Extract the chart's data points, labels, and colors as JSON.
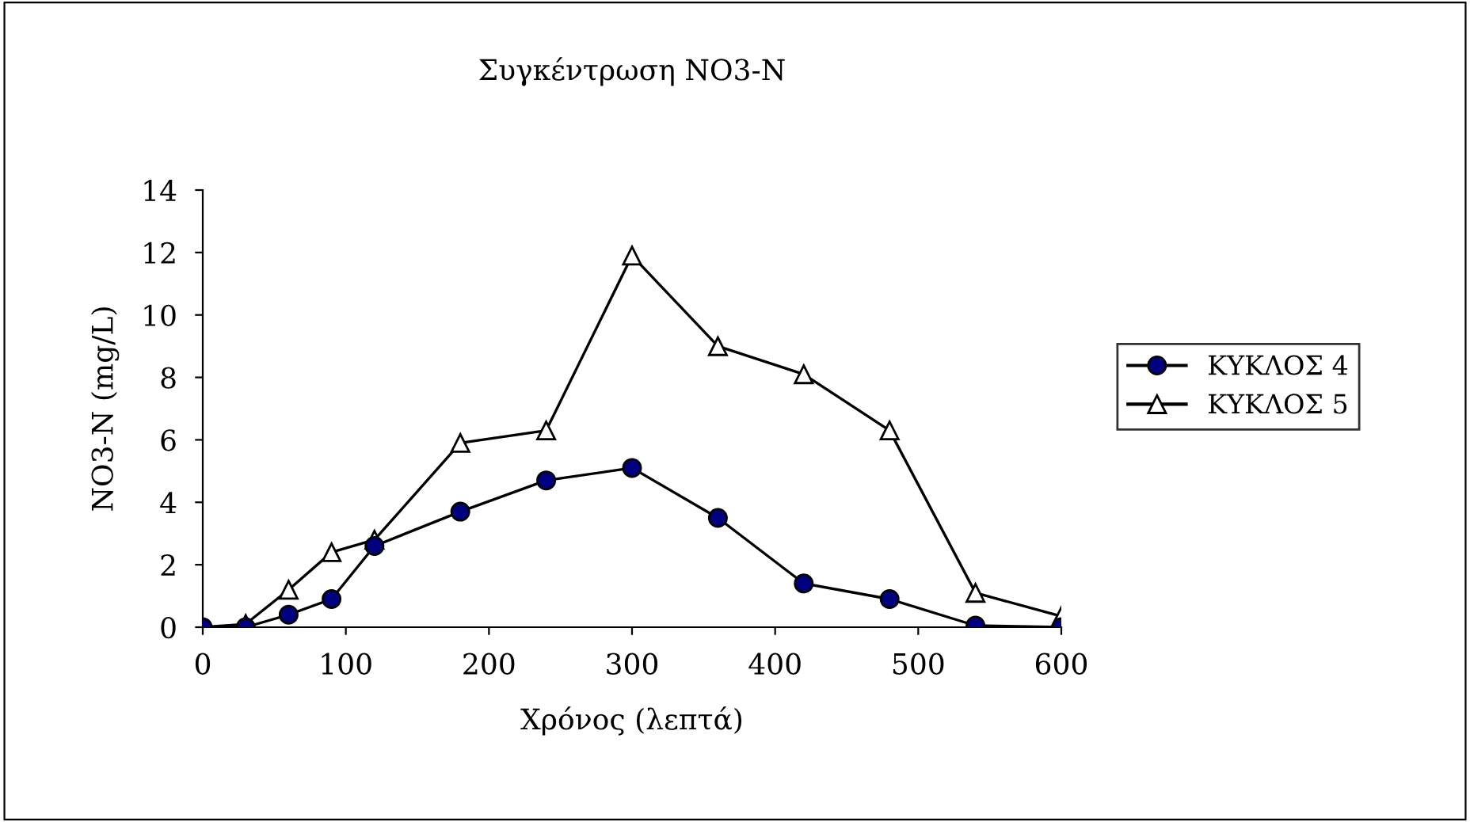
{
  "chart_data": {
    "type": "line",
    "title": "Συγκέντρωση NO3-N",
    "xlabel": "Χρόνος (λεπτά)",
    "ylabel": "NO3-N (mg/L)",
    "x": [
      0,
      30,
      60,
      90,
      120,
      180,
      240,
      300,
      360,
      420,
      480,
      540,
      600
    ],
    "series": [
      {
        "name": "ΚΥΚΛΟΣ 4",
        "color": "#000080",
        "marker": "circle",
        "values": [
          0,
          0,
          0.4,
          0.9,
          2.6,
          3.7,
          4.7,
          5.1,
          3.5,
          1.4,
          0.9,
          0.05,
          0
        ]
      },
      {
        "name": "ΚΥΚΛΟΣ 5",
        "color": "#ffffff",
        "marker": "triangle",
        "values": [
          0,
          0.1,
          1.2,
          2.4,
          2.8,
          5.9,
          6.3,
          11.9,
          9.0,
          8.1,
          6.3,
          1.1,
          0.35
        ]
      }
    ],
    "xlim": [
      0,
      600
    ],
    "xticks": [
      0,
      100,
      200,
      300,
      400,
      500,
      600
    ],
    "ylim": [
      0,
      14
    ],
    "yticks": [
      0,
      2,
      4,
      6,
      8,
      10,
      12,
      14
    ],
    "grid": false,
    "legend": "right",
    "line_style": "solid"
  }
}
